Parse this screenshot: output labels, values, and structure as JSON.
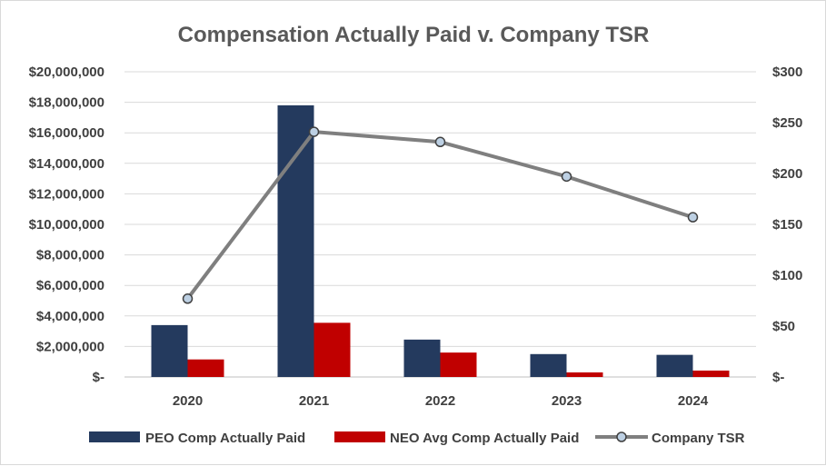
{
  "chart_data": {
    "type": "bar",
    "title": "Compensation Actually Paid v. Company TSR",
    "categories": [
      "2020",
      "2021",
      "2022",
      "2023",
      "2024"
    ],
    "series": [
      {
        "name": "PEO Comp Actually Paid",
        "kind": "bar",
        "axis": "left",
        "color": "#243a5e",
        "values": [
          3400000,
          17800000,
          2450000,
          1500000,
          1450000
        ]
      },
      {
        "name": "NEO Avg Comp Actually Paid",
        "kind": "bar",
        "axis": "left",
        "color": "#c00000",
        "values": [
          1150000,
          3550000,
          1600000,
          300000,
          420000
        ]
      },
      {
        "name": "Company TSR",
        "kind": "line",
        "axis": "right",
        "color": "#7f7f7f",
        "marker_fill": "#bdd0e3",
        "values": [
          77,
          241,
          231,
          197,
          157
        ]
      }
    ],
    "left_axis": {
      "ylim": [
        0,
        20000000
      ],
      "ticks": [
        0,
        2000000,
        4000000,
        6000000,
        8000000,
        10000000,
        12000000,
        14000000,
        16000000,
        18000000,
        20000000
      ],
      "tick_labels": [
        "$-",
        "$2,000,000",
        "$4,000,000",
        "$6,000,000",
        "$8,000,000",
        "$10,000,000",
        "$12,000,000",
        "$14,000,000",
        "$16,000,000",
        "$18,000,000",
        "$20,000,000"
      ]
    },
    "right_axis": {
      "ylim": [
        0,
        300
      ],
      "ticks": [
        0,
        50,
        100,
        150,
        200,
        250,
        300
      ],
      "tick_labels": [
        "$-",
        "$50",
        "$100",
        "$150",
        "$200",
        "$250",
        "$300"
      ]
    },
    "grid": true,
    "legend_position": "bottom"
  }
}
